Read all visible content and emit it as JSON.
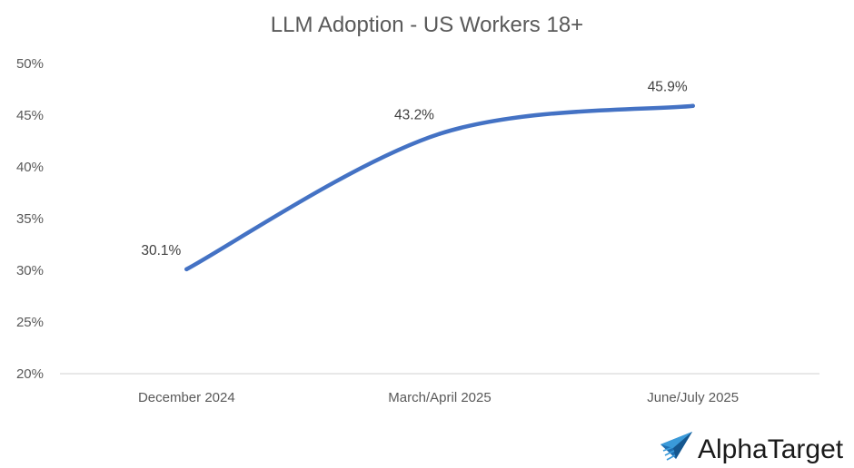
{
  "chart_data": {
    "type": "line",
    "title": "LLM Adoption - US Workers 18+",
    "categories": [
      "December 2024",
      "March/April 2025",
      "June/July 2025"
    ],
    "series": [
      {
        "name": "LLM Adoption",
        "values": [
          30.1,
          43.2,
          45.9
        ],
        "labels": [
          "30.1%",
          "43.2%",
          "45.9%"
        ],
        "color": "#4472C4"
      }
    ],
    "xlabel": "",
    "ylabel": "",
    "ylim": [
      20,
      50
    ],
    "yticks": [
      20,
      25,
      30,
      35,
      40,
      45,
      50
    ],
    "ytick_labels": [
      "20%",
      "25%",
      "30%",
      "35%",
      "40%",
      "45%",
      "50%"
    ],
    "grid": false,
    "smooth": true
  },
  "branding": {
    "logo_text": "AlphaTarget",
    "logo_icon": "paper-plane-icon",
    "logo_color": "#2a7fc1"
  },
  "colors": {
    "axis": "#d9d9d9",
    "text": "#595959",
    "label": "#404040"
  }
}
